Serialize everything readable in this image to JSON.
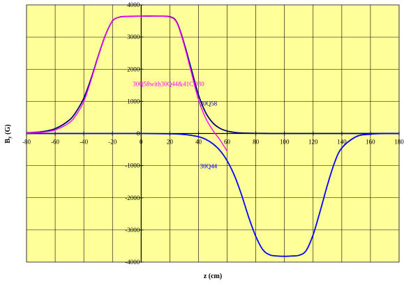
{
  "chart_data": {
    "type": "line",
    "xlabel": "z (cm)",
    "ylabel": "B",
    "ylabel_sub": "y",
    "ylabel_unit": " (G)",
    "xlim": [
      -80,
      180
    ],
    "ylim": [
      -4000,
      4000
    ],
    "x_ticks": [
      -80,
      -60,
      -40,
      -20,
      0,
      20,
      40,
      60,
      80,
      100,
      120,
      140,
      160,
      180
    ],
    "y_ticks": [
      -4000,
      -3000,
      -2000,
      -1000,
      0,
      1000,
      2000,
      3000,
      4000
    ],
    "x_tick_labels": [
      "-80",
      "-60",
      "-40",
      "-20",
      "0",
      "20",
      "40",
      "60",
      "80",
      "100",
      "120",
      "140",
      "160",
      "180"
    ],
    "y_tick_labels": [
      "-4000",
      "-3000",
      "-2000",
      "-1000",
      "0",
      "1000",
      "2000",
      "3000",
      "4000"
    ],
    "grid": true,
    "plot_background": "#ffff99",
    "series": [
      {
        "name": "30Q58",
        "color": "#000080",
        "x": [
          -80,
          -70,
          -60,
          -50,
          -45,
          -40,
          -35,
          -30,
          -25,
          -20,
          -15,
          -10,
          0,
          10,
          20,
          25,
          30,
          35,
          40,
          45,
          50,
          55,
          60,
          65,
          70,
          80,
          90,
          100,
          120,
          140,
          160,
          180
        ],
        "y": [
          20,
          50,
          150,
          420,
          700,
          1100,
          1700,
          2400,
          3050,
          3500,
          3620,
          3640,
          3650,
          3650,
          3630,
          3450,
          2800,
          2000,
          1200,
          650,
          330,
          160,
          75,
          35,
          15,
          5,
          0,
          0,
          0,
          0,
          0,
          0
        ]
      },
      {
        "name": "30Q44",
        "color": "#0000ff",
        "x": [
          -80,
          -60,
          -40,
          -20,
          0,
          20,
          30,
          40,
          45,
          50,
          55,
          60,
          65,
          70,
          75,
          80,
          85,
          90,
          95,
          100,
          105,
          110,
          115,
          120,
          125,
          130,
          135,
          140,
          150,
          160,
          170,
          180
        ],
        "y": [
          0,
          0,
          0,
          0,
          0,
          -10,
          -30,
          -100,
          -180,
          -320,
          -530,
          -850,
          -1300,
          -1900,
          -2600,
          -3200,
          -3620,
          -3780,
          -3810,
          -3820,
          -3810,
          -3790,
          -3650,
          -3150,
          -2400,
          -1600,
          -900,
          -450,
          -100,
          -20,
          0,
          0
        ]
      },
      {
        "name": "30Q58with30Q44&41CD30",
        "color": "#ff00ff",
        "x": [
          -80,
          -70,
          -60,
          -50,
          -45,
          -40,
          -35,
          -30,
          -25,
          -20,
          -15,
          -10,
          0,
          10,
          20,
          25,
          30,
          35,
          40,
          45,
          50,
          55,
          60
        ],
        "y": [
          15,
          35,
          110,
          340,
          600,
          1000,
          1650,
          2380,
          3040,
          3500,
          3620,
          3640,
          3650,
          3650,
          3620,
          3430,
          2750,
          1900,
          1050,
          480,
          100,
          -200,
          -550
        ]
      }
    ],
    "annotations": [
      {
        "text": "30Q58with30Q44&41CD30",
        "color": "#ff00ff",
        "x": 19,
        "y": 1470
      },
      {
        "text": "30Q58",
        "color": "#000080",
        "x": 47,
        "y": 870
      },
      {
        "text": "30Q44",
        "color": "#0000ff",
        "x": 47,
        "y": -1080
      }
    ]
  }
}
